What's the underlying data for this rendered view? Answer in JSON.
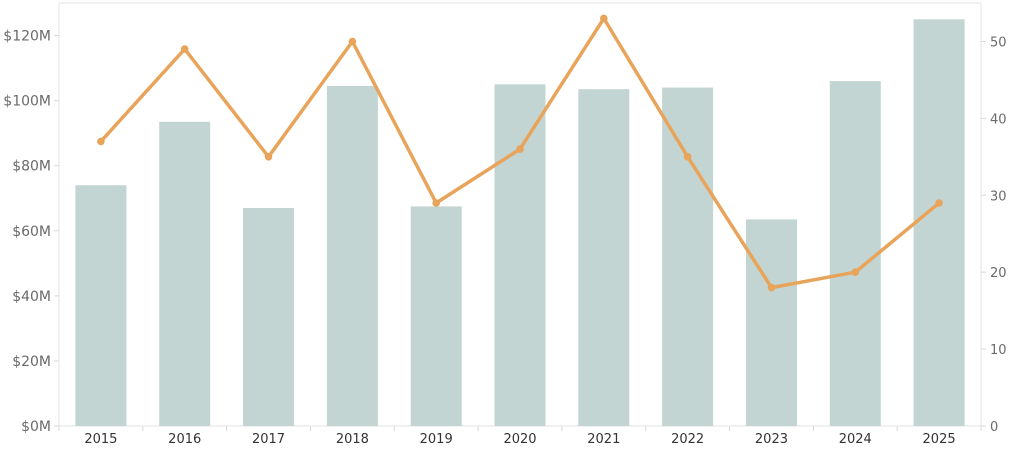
{
  "chart_data": {
    "type": "bar",
    "categories": [
      "2015",
      "2016",
      "2017",
      "2018",
      "2019",
      "2020",
      "2021",
      "2022",
      "2023",
      "2024",
      "2025"
    ],
    "series": [
      {
        "type": "bar",
        "axis": "left",
        "values": [
          74,
          93.5,
          67,
          104.5,
          67.5,
          105,
          103.5,
          104,
          63.5,
          106,
          125
        ]
      },
      {
        "type": "line",
        "axis": "right",
        "values": [
          37,
          49,
          35,
          50,
          29,
          36,
          53,
          35,
          18,
          20,
          29
        ]
      }
    ],
    "y_left": {
      "lim": [
        0,
        130
      ],
      "ticks": [
        0,
        20,
        40,
        60,
        80,
        100,
        120
      ],
      "tick_labels": [
        "$0M",
        "$20M",
        "$40M",
        "$60M",
        "$80M",
        "$100M",
        "$120M"
      ]
    },
    "y_right": {
      "lim": [
        0,
        55
      ],
      "ticks": [
        0,
        10,
        20,
        30,
        40,
        50
      ],
      "tick_labels": [
        "0",
        "10",
        "20",
        "30",
        "40",
        "50"
      ]
    },
    "title": "",
    "xlabel": "",
    "ylabel": "",
    "grid": false,
    "legend": "none",
    "colors": {
      "bar": "#c3d5d2",
      "line": "#e8a45a",
      "axis": "#d9d9d9",
      "text": "#6a6a6a"
    }
  }
}
